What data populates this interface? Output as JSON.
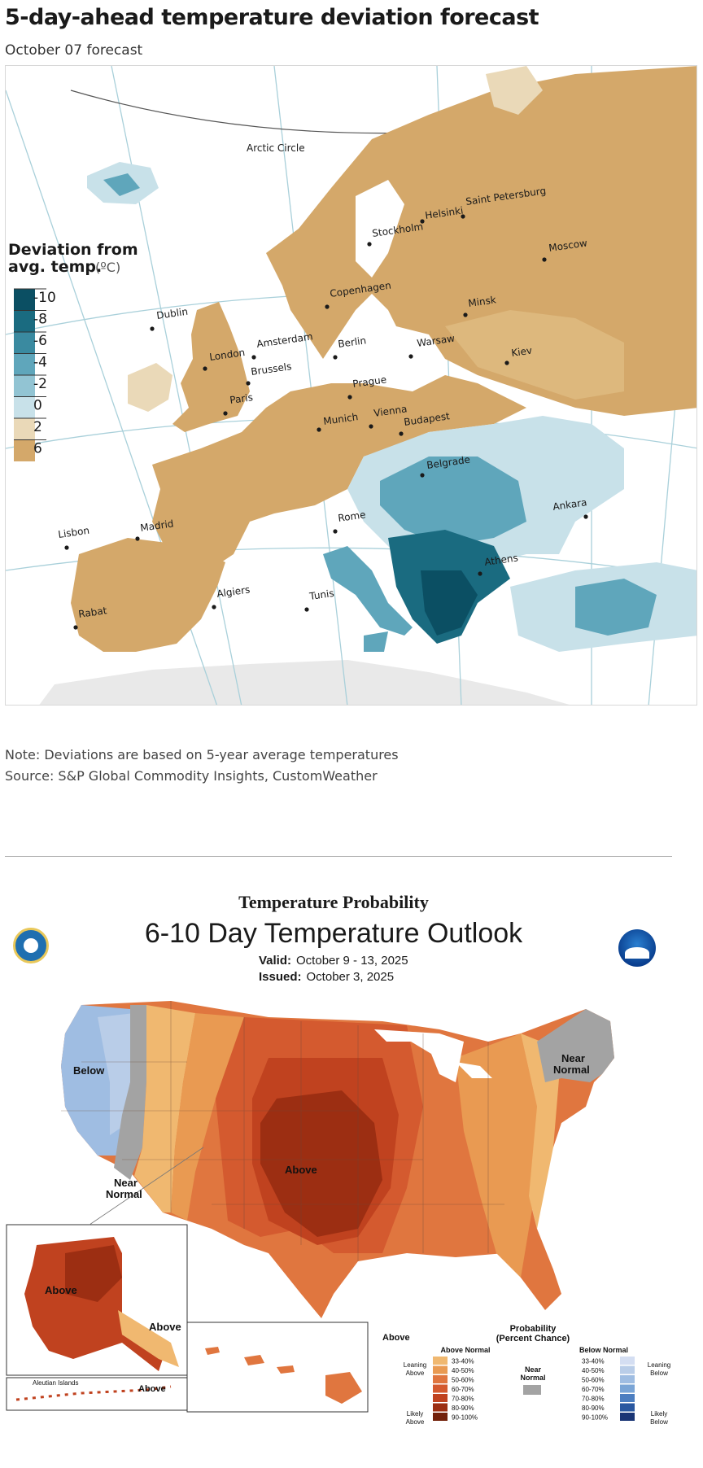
{
  "europe_map": {
    "title": "5-day-ahead temperature deviation forecast",
    "subtitle": "October 07 forecast",
    "legend": {
      "title_line1": "Deviation from",
      "title_line2": "avg. temp.",
      "unit": "(ºC)",
      "ticks": [
        "-10",
        "-8",
        "-6",
        "-4",
        "-2",
        "0",
        "2",
        "6"
      ],
      "colors": [
        "#0b4f63",
        "#1a6b80",
        "#3a8aa0",
        "#5fa6bb",
        "#92c4d3",
        "#c8e1e9",
        "#ead9b8",
        "#d4a86a"
      ]
    },
    "arctic_circle": "Arctic Circle",
    "cities": [
      "Helsinki",
      "Saint Petersburg",
      "Stockholm",
      "Moscow",
      "Copenhagen",
      "Minsk",
      "Dublin",
      "Amsterdam",
      "Berlin",
      "Warsaw",
      "London",
      "Brussels",
      "Kiev",
      "Prague",
      "Paris",
      "Munich",
      "Vienna",
      "Budapest",
      "Belgrade",
      "Rome",
      "Ankara",
      "Madrid",
      "Lisbon",
      "Athens",
      "Algiers",
      "Tunis",
      "Rabat"
    ],
    "note": "Note: Deviations are based on 5-year average temperatures",
    "source": "Source: S&P Global Commodity Insights, CustomWeather"
  },
  "us_map": {
    "heading": "Temperature Probability",
    "title": "6-10 Day Temperature Outlook",
    "valid_label": "Valid:",
    "valid_value": "October 9 - 13, 2025",
    "issued_label": "Issued:",
    "issued_value": "October 3, 2025",
    "region_labels": {
      "below": "Below",
      "near_normal_west_1": "Near",
      "near_normal_west_2": "Normal",
      "near_normal_ne_1": "Near",
      "near_normal_ne_2": "Normal",
      "above_central": "Above",
      "above_alaska_1": "Above",
      "above_alaska_2": "Above",
      "above_aleutian": "Above",
      "aleutian_islands": "Aleutian Islands",
      "above_hawaii": "Above"
    },
    "legend": {
      "title": "Probability",
      "subtitle": "(Percent Chance)",
      "above_normal": "Above Normal",
      "below_normal": "Below Normal",
      "near_normal_1": "Near",
      "near_normal_2": "Normal",
      "leaning_above_1": "Leaning",
      "leaning_above_2": "Above",
      "likely_above_1": "Likely",
      "likely_above_2": "Above",
      "leaning_below_1": "Leaning",
      "leaning_below_2": "Below",
      "likely_below_1": "Likely",
      "likely_below_2": "Below",
      "ranges": [
        "33-40%",
        "40-50%",
        "50-60%",
        "60-70%",
        "70-80%",
        "80-90%",
        "90-100%"
      ],
      "above_colors": [
        "#f0b870",
        "#e99a52",
        "#e0763f",
        "#d45a2f",
        "#c0421f",
        "#9c2e12",
        "#72200a"
      ],
      "below_colors": [
        "#d4def2",
        "#b9cde8",
        "#9fbde2",
        "#7aa5d6",
        "#4c7ec0",
        "#2a58a0",
        "#1a3575"
      ],
      "near_color": "#a3a3a3"
    }
  }
}
